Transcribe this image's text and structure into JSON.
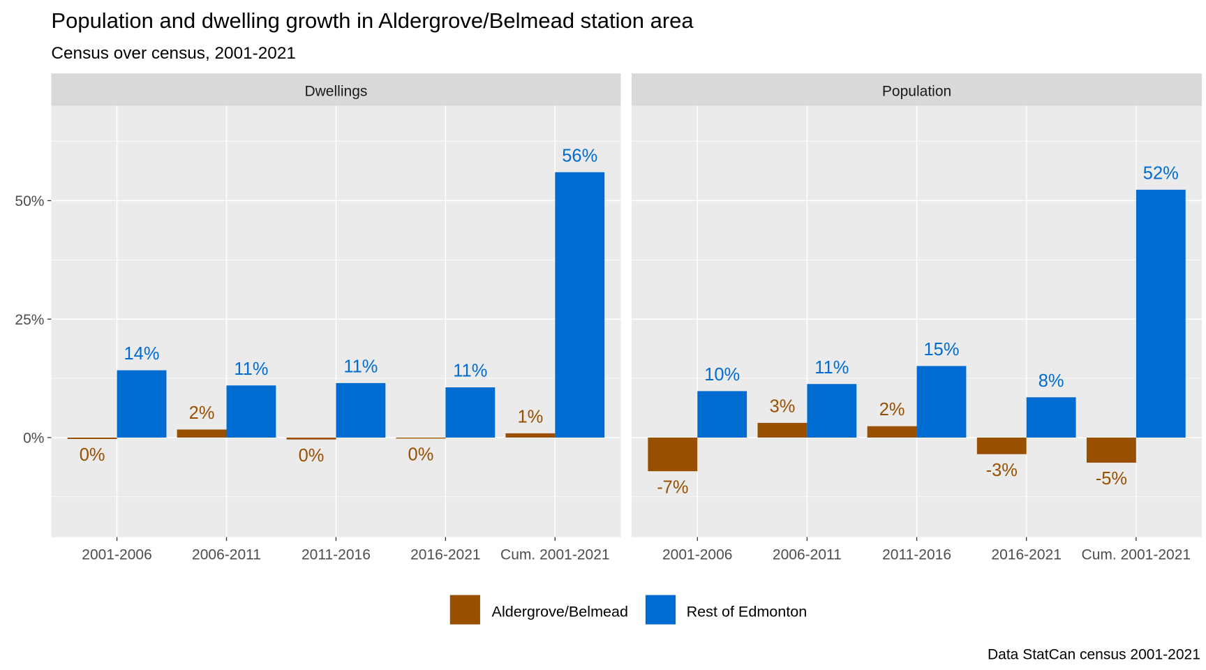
{
  "chart_data": {
    "type": "bar",
    "title": "Population and dwelling growth in Aldergrove/Belmead station area",
    "subtitle": "Census over census, 2001-2021",
    "caption": "Data StatCan census 2001-2021",
    "categories": [
      "2001-2006",
      "2006-2011",
      "2011-2016",
      "2016-2021",
      "Cum. 2001-2021"
    ],
    "y_ticks": [
      0,
      25,
      50
    ],
    "y_tick_labels": [
      "0%",
      "25%",
      "50%"
    ],
    "ylim": [
      -21,
      70
    ],
    "grid": true,
    "legend_position": "bottom",
    "colors": {
      "Aldergrove/Belmead": "#994F00",
      "Rest of Edmonton": "#006CD1"
    },
    "facets": [
      {
        "name": "Dwellings",
        "series": [
          {
            "name": "Aldergrove/Belmead",
            "values": [
              -0.3,
              1.7,
              -0.4,
              -0.2,
              0.9
            ],
            "labels": [
              "0%",
              "2%",
              "0%",
              "0%",
              "1%"
            ]
          },
          {
            "name": "Rest of Edmonton",
            "values": [
              14.2,
              11.0,
              11.5,
              10.6,
              56.0
            ],
            "labels": [
              "14%",
              "11%",
              "11%",
              "11%",
              "56%"
            ]
          }
        ]
      },
      {
        "name": "Population",
        "series": [
          {
            "name": "Aldergrove/Belmead",
            "values": [
              -7.1,
              3.1,
              2.4,
              -3.5,
              -5.3
            ],
            "labels": [
              "-7%",
              "3%",
              "2%",
              "-3%",
              "-5%"
            ]
          },
          {
            "name": "Rest of Edmonton",
            "values": [
              9.8,
              11.3,
              15.1,
              8.5,
              52.3
            ],
            "labels": [
              "10%",
              "11%",
              "15%",
              "8%",
              "52%"
            ]
          }
        ]
      }
    ],
    "legend": [
      "Aldergrove/Belmead",
      "Rest of Edmonton"
    ]
  }
}
